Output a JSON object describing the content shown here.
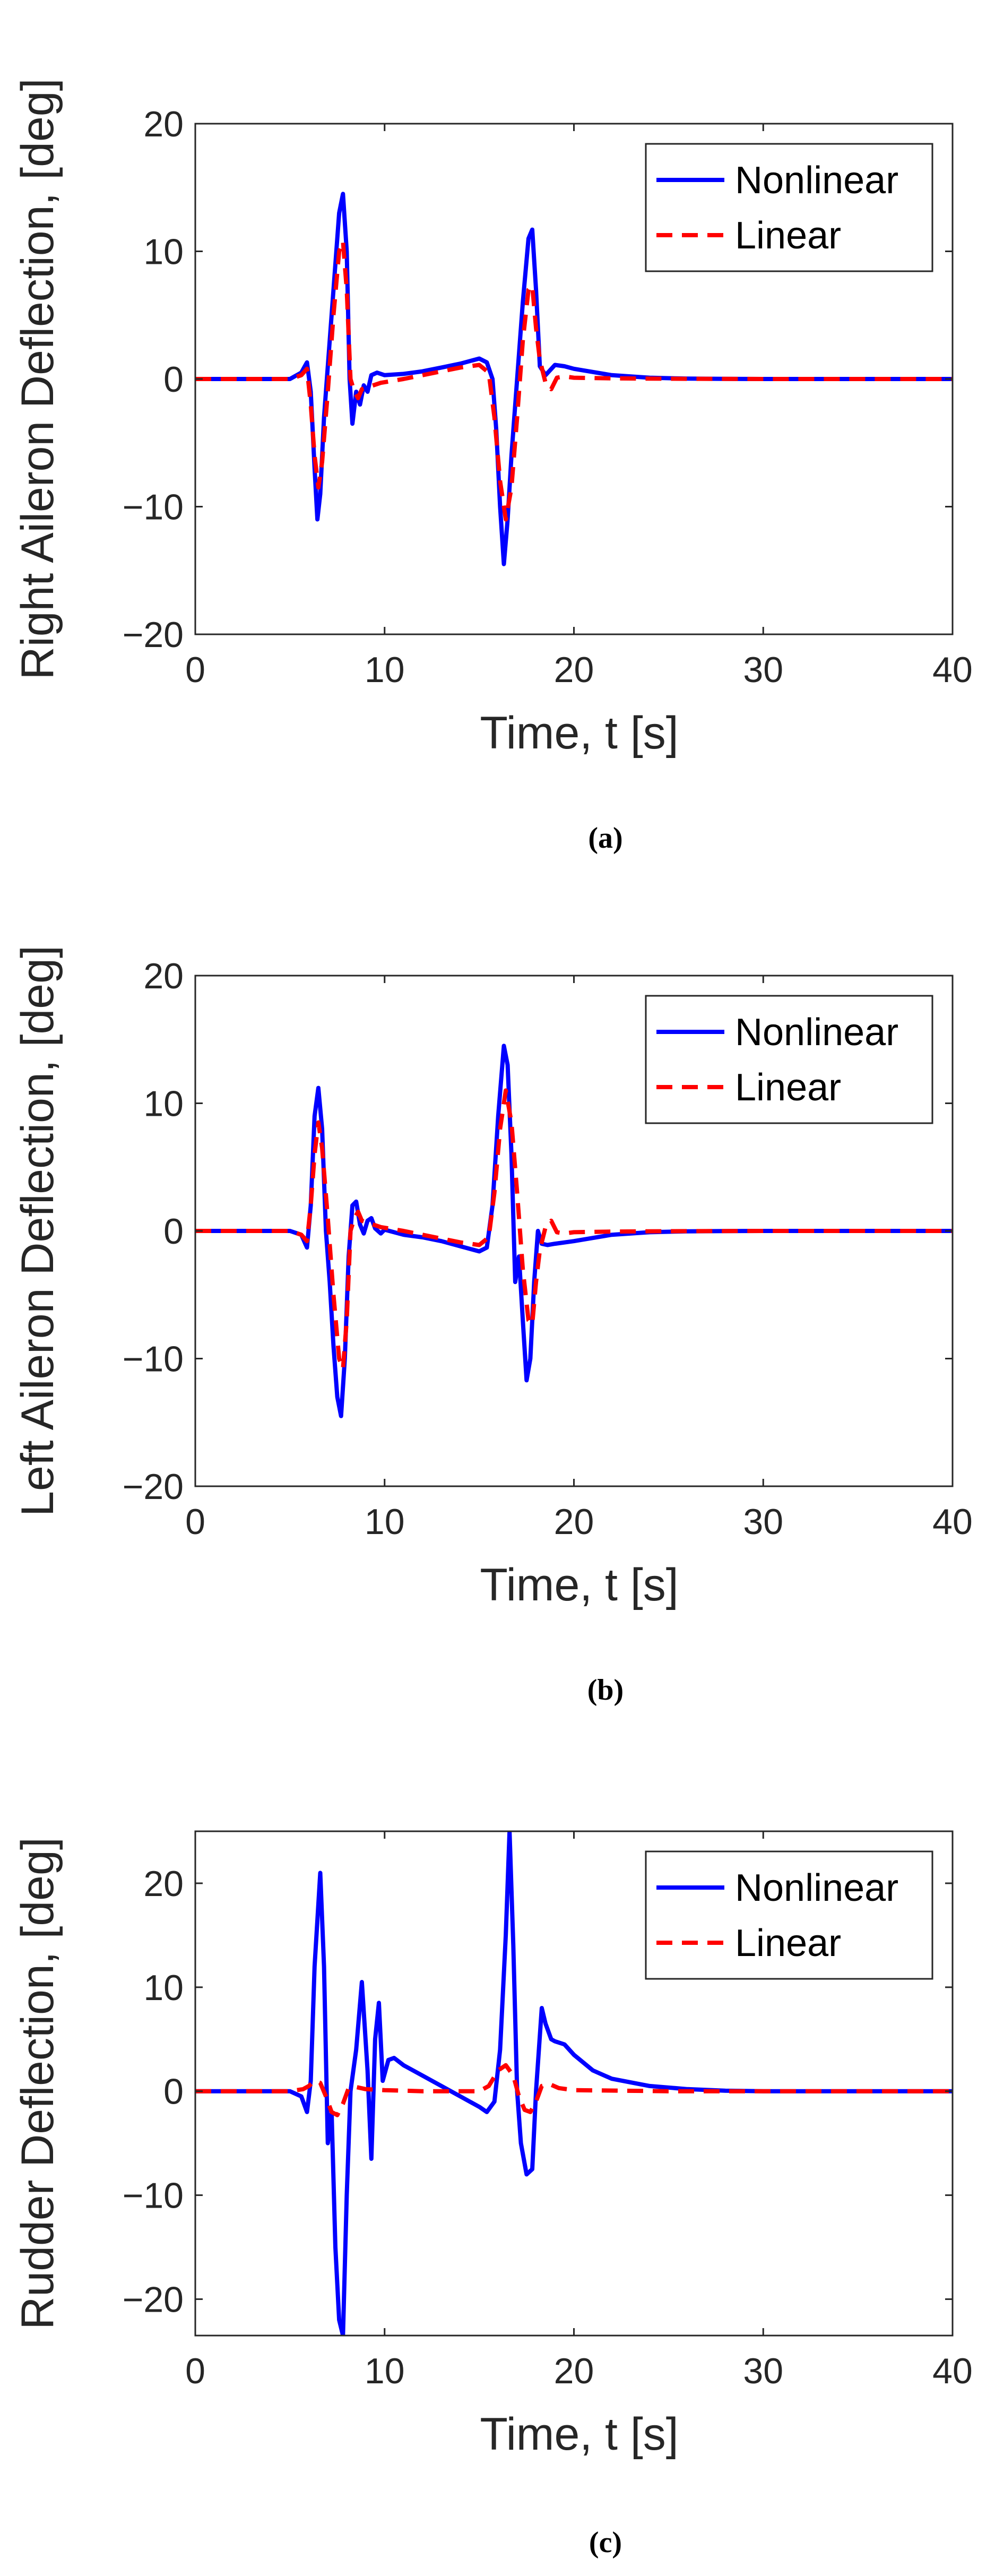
{
  "chart_data": [
    {
      "type": "line",
      "panel": "a",
      "caption": "(a)",
      "xlabel": "Time, t [s]",
      "ylabel": "Right Aileron Deflection, [deg]",
      "xlim": [
        0,
        40
      ],
      "ylim": [
        -20,
        20
      ],
      "xticks": [
        0,
        10,
        20,
        30,
        40
      ],
      "yticks": [
        -20,
        -10,
        0,
        10,
        20
      ],
      "ytick_labels": [
        "−20",
        "−10",
        "0",
        "10",
        "20"
      ],
      "grid": false,
      "legend_position": "top-right",
      "series": [
        {
          "name": "Nonlinear",
          "color": "#0000ff",
          "style": "solid",
          "x": [
            0,
            5,
            5.6,
            5.9,
            6.1,
            6.3,
            6.45,
            6.6,
            6.8,
            7.1,
            7.4,
            7.6,
            7.8,
            8.0,
            8.15,
            8.3,
            8.5,
            8.7,
            8.9,
            9.1,
            9.3,
            9.6,
            10,
            11,
            12,
            13,
            14,
            15,
            15.4,
            15.7,
            15.9,
            16.1,
            16.3,
            16.5,
            16.7,
            17.0,
            17.3,
            17.6,
            17.8,
            18.0,
            18.2,
            18.5,
            19.0,
            19.5,
            20,
            22,
            24,
            26,
            28,
            30,
            35,
            40
          ],
          "y": [
            0,
            0,
            0.5,
            1.3,
            -1,
            -7,
            -11,
            -9,
            -3,
            3,
            9,
            13,
            14.5,
            10,
            0,
            -3.5,
            -1,
            -2,
            -0.5,
            -1,
            0.3,
            0.5,
            0.3,
            0.4,
            0.6,
            0.9,
            1.2,
            1.6,
            1.3,
            0,
            -4,
            -10,
            -14.5,
            -11,
            -6,
            0,
            6,
            11,
            11.7,
            7,
            1,
            0.3,
            1.1,
            1.0,
            0.8,
            0.3,
            0.1,
            0.03,
            0.01,
            0,
            0,
            0
          ]
        },
        {
          "name": "Linear",
          "color": "#ff0000",
          "style": "dashed",
          "x": [
            0,
            5,
            5.6,
            5.9,
            6.1,
            6.3,
            6.5,
            6.7,
            7.0,
            7.3,
            7.6,
            7.8,
            8.0,
            8.2,
            8.4,
            8.6,
            8.8,
            9.2,
            9.8,
            11,
            12,
            13,
            14,
            15,
            15.5,
            15.8,
            16.1,
            16.4,
            16.7,
            17.0,
            17.3,
            17.6,
            17.8,
            18.0,
            18.2,
            18.5,
            18.8,
            19.1,
            19.5,
            20,
            22,
            25,
            30,
            40
          ],
          "y": [
            0,
            0,
            0.3,
            0.8,
            -2,
            -6,
            -8.5,
            -6.5,
            -1,
            5,
            10,
            10.8,
            7,
            0,
            -1,
            -1.5,
            -0.8,
            -0.6,
            -0.3,
            0,
            0.3,
            0.6,
            0.9,
            1.1,
            0.5,
            -3,
            -8,
            -11,
            -8.5,
            -3,
            3,
            7,
            7.3,
            4,
            1.5,
            -0.3,
            -0.8,
            0.1,
            0.2,
            0.1,
            0.05,
            0.02,
            0,
            0
          ]
        }
      ]
    },
    {
      "type": "line",
      "panel": "b",
      "caption": "(b)",
      "xlabel": "Time, t [s]",
      "ylabel": "Left Aileron Deflection, [deg]",
      "xlim": [
        0,
        40
      ],
      "ylim": [
        -20,
        20
      ],
      "xticks": [
        0,
        10,
        20,
        30,
        40
      ],
      "yticks": [
        -20,
        -10,
        0,
        10,
        20
      ],
      "ytick_labels": [
        "−20",
        "−10",
        "0",
        "10",
        "20"
      ],
      "grid": false,
      "legend_position": "top-right",
      "series": [
        {
          "name": "Nonlinear",
          "color": "#0000ff",
          "style": "solid",
          "x": [
            0,
            5,
            5.6,
            5.9,
            6.1,
            6.3,
            6.5,
            6.7,
            6.9,
            7.1,
            7.3,
            7.5,
            7.7,
            7.9,
            8.1,
            8.3,
            8.5,
            8.7,
            8.9,
            9.1,
            9.3,
            9.5,
            9.8,
            10,
            11,
            12,
            13,
            14,
            15,
            15.4,
            15.7,
            16.0,
            16.3,
            16.5,
            16.7,
            16.9,
            17.1,
            17.3,
            17.5,
            17.7,
            17.9,
            18.1,
            18.3,
            18.6,
            19.0,
            20,
            22,
            24,
            26,
            28,
            30,
            35,
            40
          ],
          "y": [
            0,
            0,
            -0.3,
            -1.3,
            2,
            9,
            11.2,
            8,
            0,
            -4,
            -9,
            -13,
            -14.5,
            -10,
            -2,
            2,
            2.3,
            0.5,
            -0.2,
            0.8,
            1,
            0.2,
            -0.2,
            0.1,
            -0.3,
            -0.5,
            -0.8,
            -1.2,
            -1.6,
            -1.3,
            2,
            9,
            14.5,
            13,
            6,
            -4,
            -2,
            -7,
            -11.7,
            -10,
            -4,
            0,
            -1,
            -1.1,
            -1.0,
            -0.8,
            -0.3,
            -0.1,
            -0.03,
            -0.01,
            0,
            0,
            0
          ]
        },
        {
          "name": "Linear",
          "color": "#ff0000",
          "style": "dashed",
          "x": [
            0,
            5,
            5.6,
            5.9,
            6.1,
            6.3,
            6.5,
            6.7,
            7.0,
            7.3,
            7.6,
            7.8,
            8.0,
            8.2,
            8.4,
            8.6,
            8.8,
            9.2,
            9.8,
            11,
            12,
            13,
            14,
            15,
            15.5,
            15.8,
            16.1,
            16.4,
            16.7,
            17.0,
            17.3,
            17.6,
            17.8,
            18.0,
            18.2,
            18.5,
            18.8,
            19.1,
            19.5,
            20,
            22,
            25,
            30,
            40
          ],
          "y": [
            0,
            0,
            -0.3,
            -0.8,
            2,
            6,
            8.5,
            6.5,
            1,
            -5,
            -10,
            -10.8,
            -7,
            0,
            1,
            1.5,
            0.8,
            0.6,
            0.3,
            0,
            -0.3,
            -0.6,
            -0.9,
            -1.1,
            -0.5,
            3,
            8,
            11,
            8.5,
            3,
            -3,
            -7,
            -7.3,
            -4,
            -1.5,
            0.3,
            0.8,
            -0.1,
            -0.2,
            -0.1,
            -0.05,
            -0.02,
            0,
            0
          ]
        }
      ]
    },
    {
      "type": "line",
      "panel": "c",
      "caption": "(c)",
      "xlabel": "Time, t [s]",
      "ylabel": "Rudder Deflection, [deg]",
      "xlim": [
        0,
        40
      ],
      "ylim": [
        -23.5,
        25
      ],
      "xticks": [
        0,
        10,
        20,
        30,
        40
      ],
      "yticks": [
        -20,
        -10,
        0,
        10,
        20
      ],
      "ytick_labels": [
        "−20",
        "−10",
        "0",
        "10",
        "20"
      ],
      "grid": false,
      "legend_position": "top-right",
      "series": [
        {
          "name": "Nonlinear",
          "color": "#0000ff",
          "style": "solid",
          "x": [
            0,
            5,
            5.6,
            5.9,
            6.1,
            6.3,
            6.6,
            6.8,
            7.0,
            7.2,
            7.4,
            7.6,
            7.8,
            8.0,
            8.2,
            8.5,
            8.8,
            9.1,
            9.3,
            9.5,
            9.7,
            9.9,
            10.2,
            10.5,
            11,
            12,
            13,
            14,
            15,
            15.4,
            15.8,
            16.1,
            16.4,
            16.6,
            16.8,
            17.0,
            17.2,
            17.5,
            17.8,
            18.0,
            18.3,
            18.5,
            18.8,
            19.0,
            19.5,
            20,
            21,
            22,
            24,
            26,
            28,
            30,
            35,
            40
          ],
          "y": [
            0,
            0,
            -0.5,
            -2,
            1,
            12,
            21,
            12,
            -5,
            -2,
            -15,
            -22,
            -23.5,
            -10,
            0,
            4,
            10.5,
            2,
            -6.5,
            5,
            8.5,
            1,
            3,
            3.2,
            2.5,
            1.5,
            0.5,
            -0.5,
            -1.5,
            -2,
            -1,
            4,
            15,
            25,
            14,
            0,
            -5,
            -8,
            -7.5,
            0,
            8,
            6.5,
            5,
            4.8,
            4.5,
            3.5,
            2,
            1.2,
            0.5,
            0.2,
            0.05,
            0,
            0,
            0
          ]
        },
        {
          "name": "Linear",
          "color": "#ff0000",
          "style": "dashed",
          "x": [
            0,
            5,
            5.7,
            6.0,
            6.3,
            6.6,
            6.9,
            7.2,
            7.5,
            7.8,
            8.1,
            8.5,
            9.0,
            10,
            12,
            14,
            15,
            15.5,
            16.0,
            16.4,
            16.8,
            17.1,
            17.4,
            17.7,
            18.0,
            18.3,
            18.7,
            19.2,
            20,
            25,
            30,
            40
          ],
          "y": [
            0,
            0,
            0.2,
            0.5,
            1.0,
            0.8,
            -0.5,
            -2,
            -2.3,
            -1.2,
            0.3,
            0.4,
            0.2,
            0.1,
            0,
            0,
            0,
            0.5,
            2,
            2.5,
            1.5,
            -0.5,
            -1.8,
            -2,
            -1,
            0.5,
            0.7,
            0.3,
            0.1,
            0,
            0,
            0
          ]
        }
      ]
    }
  ]
}
